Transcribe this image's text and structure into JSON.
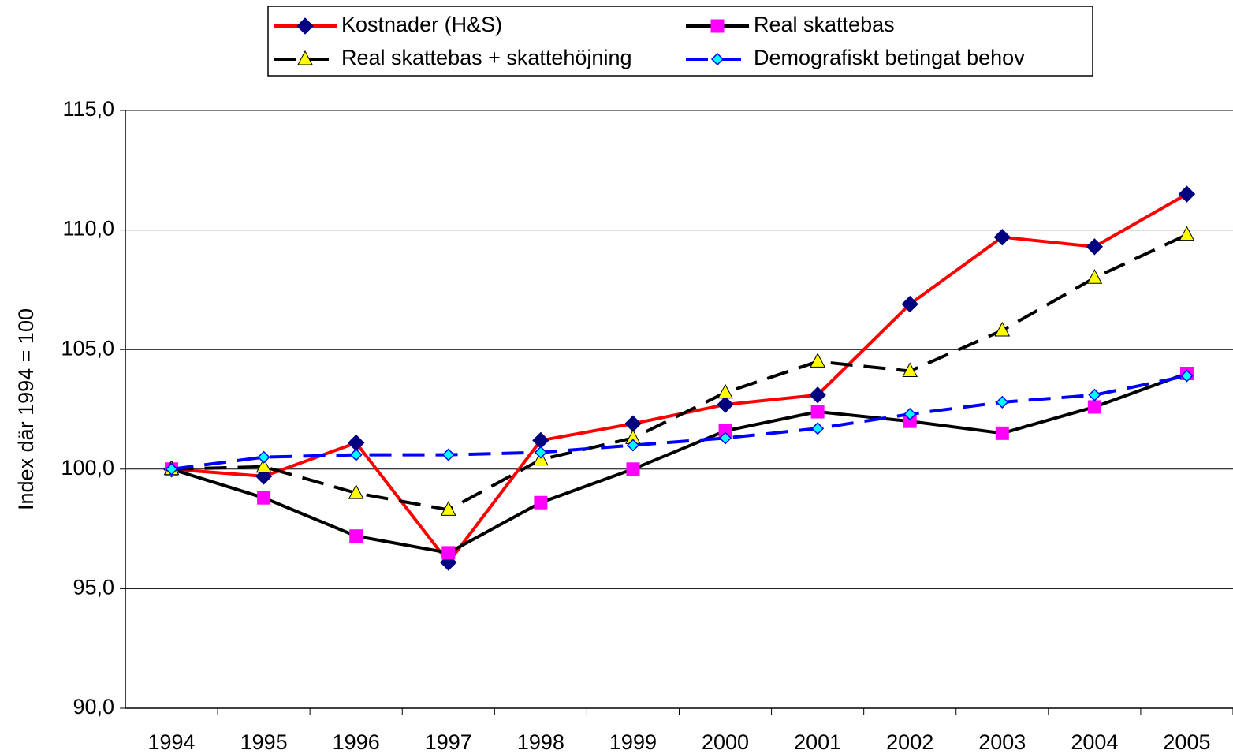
{
  "chart_data": {
    "type": "line",
    "y_label": "Index där 1994 = 100",
    "categories": [
      "1994",
      "1995",
      "1996",
      "1997",
      "1998",
      "1999",
      "2000",
      "2001",
      "2002",
      "2003",
      "2004",
      "2005"
    ],
    "series": [
      {
        "name": "Kostnader (H&S)",
        "color": "#ff0000",
        "marker": "diamond",
        "marker_color": "#000080",
        "line_style": "solid",
        "values": [
          100.0,
          99.7,
          101.1,
          96.1,
          101.2,
          101.9,
          102.7,
          103.1,
          106.9,
          109.7,
          109.3,
          111.5
        ]
      },
      {
        "name": "Real skattebas",
        "color": "#000000",
        "marker": "square",
        "marker_color": "#ff00ff",
        "line_style": "solid",
        "values": [
          100.0,
          98.8,
          97.2,
          96.5,
          98.6,
          100.0,
          101.6,
          102.4,
          102.0,
          101.5,
          102.6,
          104.0
        ]
      },
      {
        "name": "Real skattebas + skattehöjning",
        "color": "#000000",
        "marker": "triangle",
        "marker_color": "#ffff00",
        "line_style": "dashed",
        "values": [
          100.0,
          100.1,
          99.0,
          98.3,
          100.4,
          101.3,
          103.2,
          104.5,
          104.1,
          105.8,
          108.0,
          109.8
        ]
      },
      {
        "name": "Demografiskt betingat behov",
        "color": "#0000ff",
        "marker": "small-diamond",
        "marker_color": "#00ffff",
        "line_style": "dashed",
        "values": [
          100.0,
          100.5,
          100.6,
          100.6,
          100.7,
          101.0,
          101.3,
          101.7,
          102.3,
          102.8,
          103.1,
          103.9
        ]
      }
    ],
    "ylim": [
      90,
      115
    ],
    "yticks": [
      {
        "value": 90,
        "label": "90,0"
      },
      {
        "value": 95,
        "label": "95,0"
      },
      {
        "value": 100,
        "label": "100,0"
      },
      {
        "value": 105,
        "label": "105,0"
      },
      {
        "value": 110,
        "label": "110,0"
      },
      {
        "value": 115,
        "label": "115,0"
      }
    ],
    "grid": true,
    "legend": "top"
  }
}
